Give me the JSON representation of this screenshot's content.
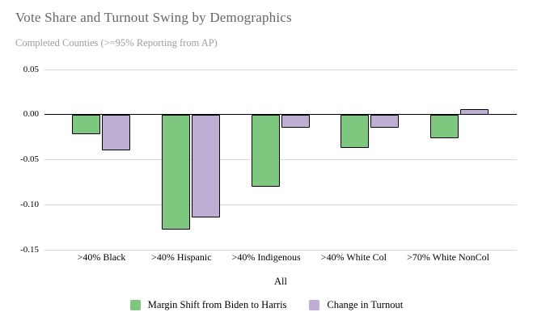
{
  "chart_data": {
    "type": "bar",
    "title": "Vote Share and Turnout Swing by Demographics",
    "subtitle": "Completed Counties (>=95% Reporting from AP)",
    "categories": [
      ">40% Black",
      ">40% Hispanic",
      ">40% Indigenous",
      ">40% White Col",
      ">70% White NonCol"
    ],
    "series": [
      {
        "name": "Margin Shift from Biden to Harris",
        "color": "#7dc87e",
        "values": [
          -0.022,
          -0.128,
          -0.08,
          -0.037,
          -0.026
        ]
      },
      {
        "name": "Change in Turnout",
        "color": "#beaed4",
        "values": [
          -0.04,
          -0.114,
          -0.015,
          -0.015,
          0.006
        ]
      }
    ],
    "xlabel": "All",
    "ylabel": "",
    "ylim": [
      -0.15,
      0.05
    ],
    "yticks": [
      0.05,
      0.0,
      -0.05,
      -0.1,
      -0.15
    ],
    "grid": true,
    "legend_position": "bottom",
    "colors": {
      "background": "#ffffff",
      "gridline": "#d9d9d9",
      "zero_line": "#000000",
      "bar_border": "#000000",
      "title_text": "#666666",
      "subtitle_text": "#9e9e9e",
      "label_text": "#000000"
    }
  }
}
